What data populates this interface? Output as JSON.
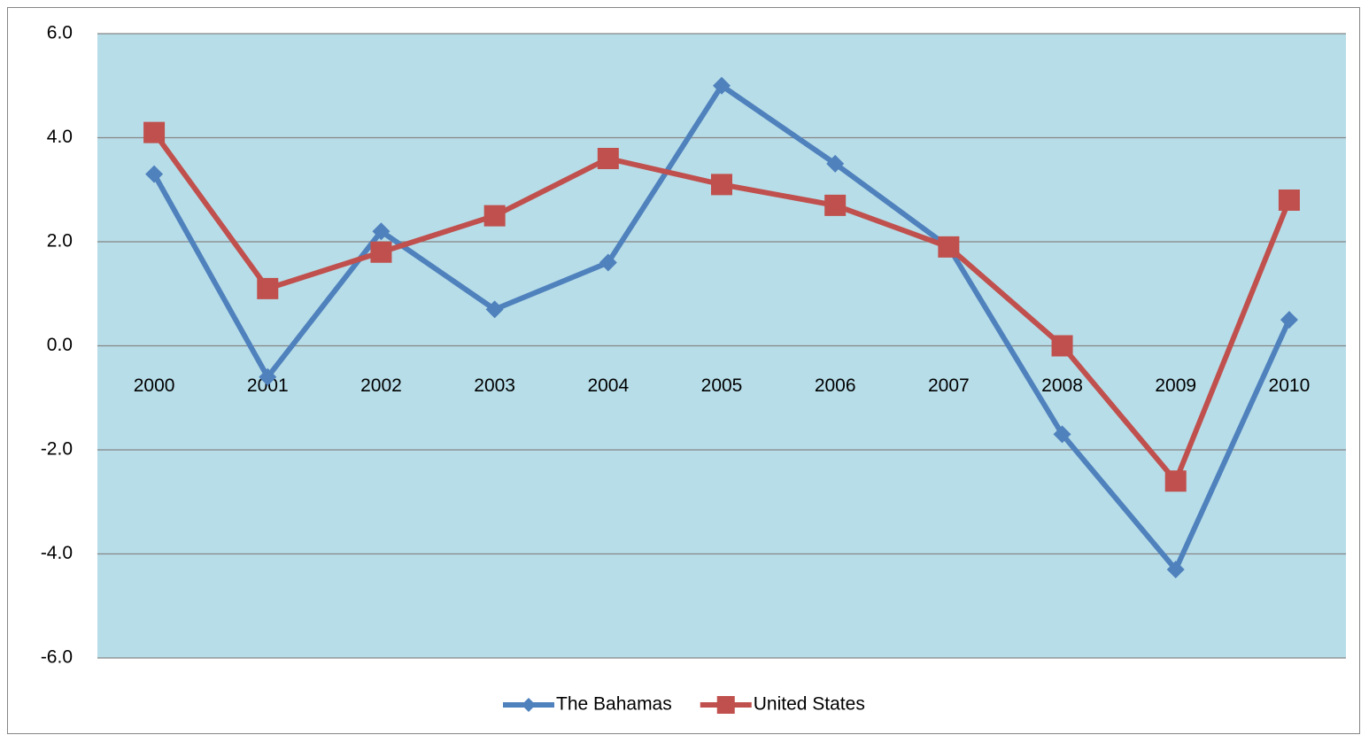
{
  "chart_data": {
    "type": "line",
    "categories": [
      "2000",
      "2001",
      "2002",
      "2003",
      "2004",
      "2005",
      "2006",
      "2007",
      "2008",
      "2009",
      "2010"
    ],
    "series": [
      {
        "name": "The Bahamas",
        "color": "#4f81bd",
        "marker": "diamond",
        "values": [
          3.3,
          -0.6,
          2.2,
          0.7,
          1.6,
          5.0,
          3.5,
          1.9,
          -1.7,
          -4.3,
          0.5
        ]
      },
      {
        "name": "United States",
        "color": "#c0504d",
        "marker": "square",
        "values": [
          4.1,
          1.1,
          1.8,
          2.5,
          3.6,
          3.1,
          2.7,
          1.9,
          0.0,
          -2.6,
          2.8
        ]
      }
    ],
    "ylim": [
      -6,
      6
    ],
    "yticks": [
      {
        "value": -6,
        "label": "-6.0"
      },
      {
        "value": -4,
        "label": "-4.0"
      },
      {
        "value": -2,
        "label": "-2.0"
      },
      {
        "value": 0,
        "label": "0.0"
      },
      {
        "value": 2,
        "label": "2.0"
      },
      {
        "value": 4,
        "label": "4.0"
      },
      {
        "value": 6,
        "label": "6.0"
      }
    ],
    "grid": true,
    "plot_background": "#b7dde8",
    "legend": "bottom"
  }
}
